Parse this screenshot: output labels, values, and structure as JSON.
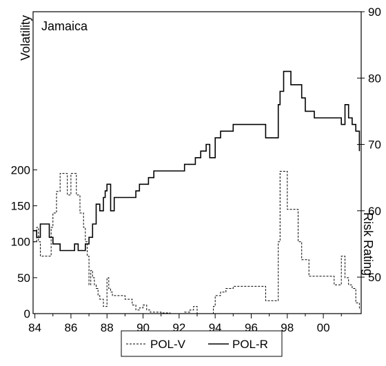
{
  "chart_data": {
    "type": "line",
    "title": "Jamaica",
    "left_axis_label": "Volatility",
    "right_axis_label": "Risk Rating",
    "left_ticks": [
      0,
      50,
      100,
      150,
      200
    ],
    "left_tick_labels": [
      "0",
      "50",
      "100",
      "150",
      "200"
    ],
    "right_ticks": [
      50,
      60,
      70,
      80,
      90
    ],
    "right_tick_labels": [
      "50",
      "60",
      "70",
      "80",
      "90"
    ],
    "x_ticks": [
      1984,
      1986,
      1988,
      1990,
      1992,
      1994,
      1996,
      1998,
      2000
    ],
    "x_tick_labels": [
      "84",
      "86",
      "88",
      "90",
      "92",
      "94",
      "96",
      "98",
      "00"
    ],
    "xlim": [
      1983.9,
      2002.1
    ],
    "left_ylim": [
      0,
      420
    ],
    "right_ylim": [
      44.5,
      90
    ],
    "grid": false,
    "legend_position": "bottom-center",
    "series": [
      {
        "name": "POL-V",
        "axis": "left",
        "style": "dashed",
        "x": [
          1983.9,
          1984.1,
          1984.2,
          1984.3,
          1984.4,
          1984.5,
          1984.9,
          1985.0,
          1985.2,
          1985.4,
          1985.6,
          1985.8,
          1986.0,
          1986.3,
          1986.5,
          1986.7,
          1986.8,
          1986.9,
          1987.0,
          1987.1,
          1987.2,
          1987.3,
          1987.4,
          1987.5,
          1987.6,
          1987.8,
          1988.0,
          1988.1,
          1988.2,
          1988.3,
          1988.5,
          1989.0,
          1989.4,
          1989.6,
          1989.8,
          1990.0,
          1990.2,
          1990.4,
          1991.0,
          1991.5,
          1992.0,
          1992.3,
          1992.6,
          1992.8,
          1993.0,
          1993.3,
          1993.6,
          1993.9,
          1994.0,
          1994.3,
          1994.6,
          1995.0,
          1995.5,
          1996.0,
          1996.8,
          1997.0,
          1997.2,
          1997.4,
          1997.5,
          1997.6,
          1998.0,
          1998.2,
          1998.4,
          1998.6,
          1998.8,
          1999.2,
          1999.6,
          2000.0,
          2000.4,
          2000.6,
          2000.8,
          2001.0,
          2001.2,
          2001.4,
          2001.6,
          2001.8,
          2002.0
        ],
        "y": [
          100,
          120,
          100,
          80,
          80,
          80,
          120,
          140,
          170,
          195,
          195,
          165,
          195,
          165,
          140,
          120,
          100,
          80,
          40,
          60,
          50,
          40,
          35,
          25,
          20,
          10,
          50,
          35,
          30,
          25,
          25,
          20,
          12,
          5,
          8,
          12,
          5,
          2,
          1,
          0,
          0,
          2,
          5,
          10,
          0,
          0,
          0,
          10,
          25,
          30,
          35,
          38,
          38,
          38,
          18,
          18,
          18,
          18,
          100,
          198,
          145,
          145,
          145,
          100,
          75,
          52,
          52,
          52,
          52,
          40,
          40,
          80,
          50,
          40,
          35,
          15,
          5
        ]
      },
      {
        "name": "POL-R",
        "axis": "right",
        "style": "solid",
        "x": [
          1983.9,
          1984.1,
          1984.3,
          1984.4,
          1984.6,
          1984.8,
          1985.0,
          1985.2,
          1985.4,
          1985.6,
          1985.8,
          1986.0,
          1986.2,
          1986.4,
          1986.6,
          1986.8,
          1987.0,
          1987.2,
          1987.4,
          1987.6,
          1987.8,
          1987.9,
          1988.0,
          1988.2,
          1988.4,
          1988.6,
          1988.8,
          1989.0,
          1989.3,
          1989.6,
          1989.8,
          1990.0,
          1990.3,
          1990.6,
          1990.9,
          1991.2,
          1991.6,
          1992.0,
          1992.3,
          1992.6,
          1992.9,
          1993.2,
          1993.5,
          1993.7,
          1994.0,
          1994.3,
          1994.6,
          1995.0,
          1995.5,
          1996.0,
          1996.5,
          1996.8,
          1997.0,
          1997.3,
          1997.5,
          1997.6,
          1997.8,
          1998.2,
          1998.6,
          1998.8,
          1999.0,
          1999.5,
          2000.0,
          2000.5,
          2000.8,
          2001.0,
          2001.2,
          2001.4,
          2001.6,
          2001.8,
          2002.0
        ],
        "y": [
          57,
          56,
          58,
          58,
          58,
          56,
          55,
          55,
          54,
          54,
          54,
          54,
          55,
          54,
          54,
          55,
          56,
          58,
          61,
          60,
          62,
          63,
          64,
          60,
          62,
          62,
          62,
          62,
          62,
          63,
          64,
          64,
          65,
          66,
          66,
          66,
          66,
          66,
          67,
          67,
          68,
          69,
          70,
          68,
          71,
          72,
          72,
          73,
          73,
          73,
          73,
          71,
          71,
          71,
          76,
          78,
          81,
          79,
          79,
          77,
          75,
          74,
          74,
          74,
          74,
          73,
          76,
          74,
          73,
          72,
          69
        ]
      }
    ]
  }
}
